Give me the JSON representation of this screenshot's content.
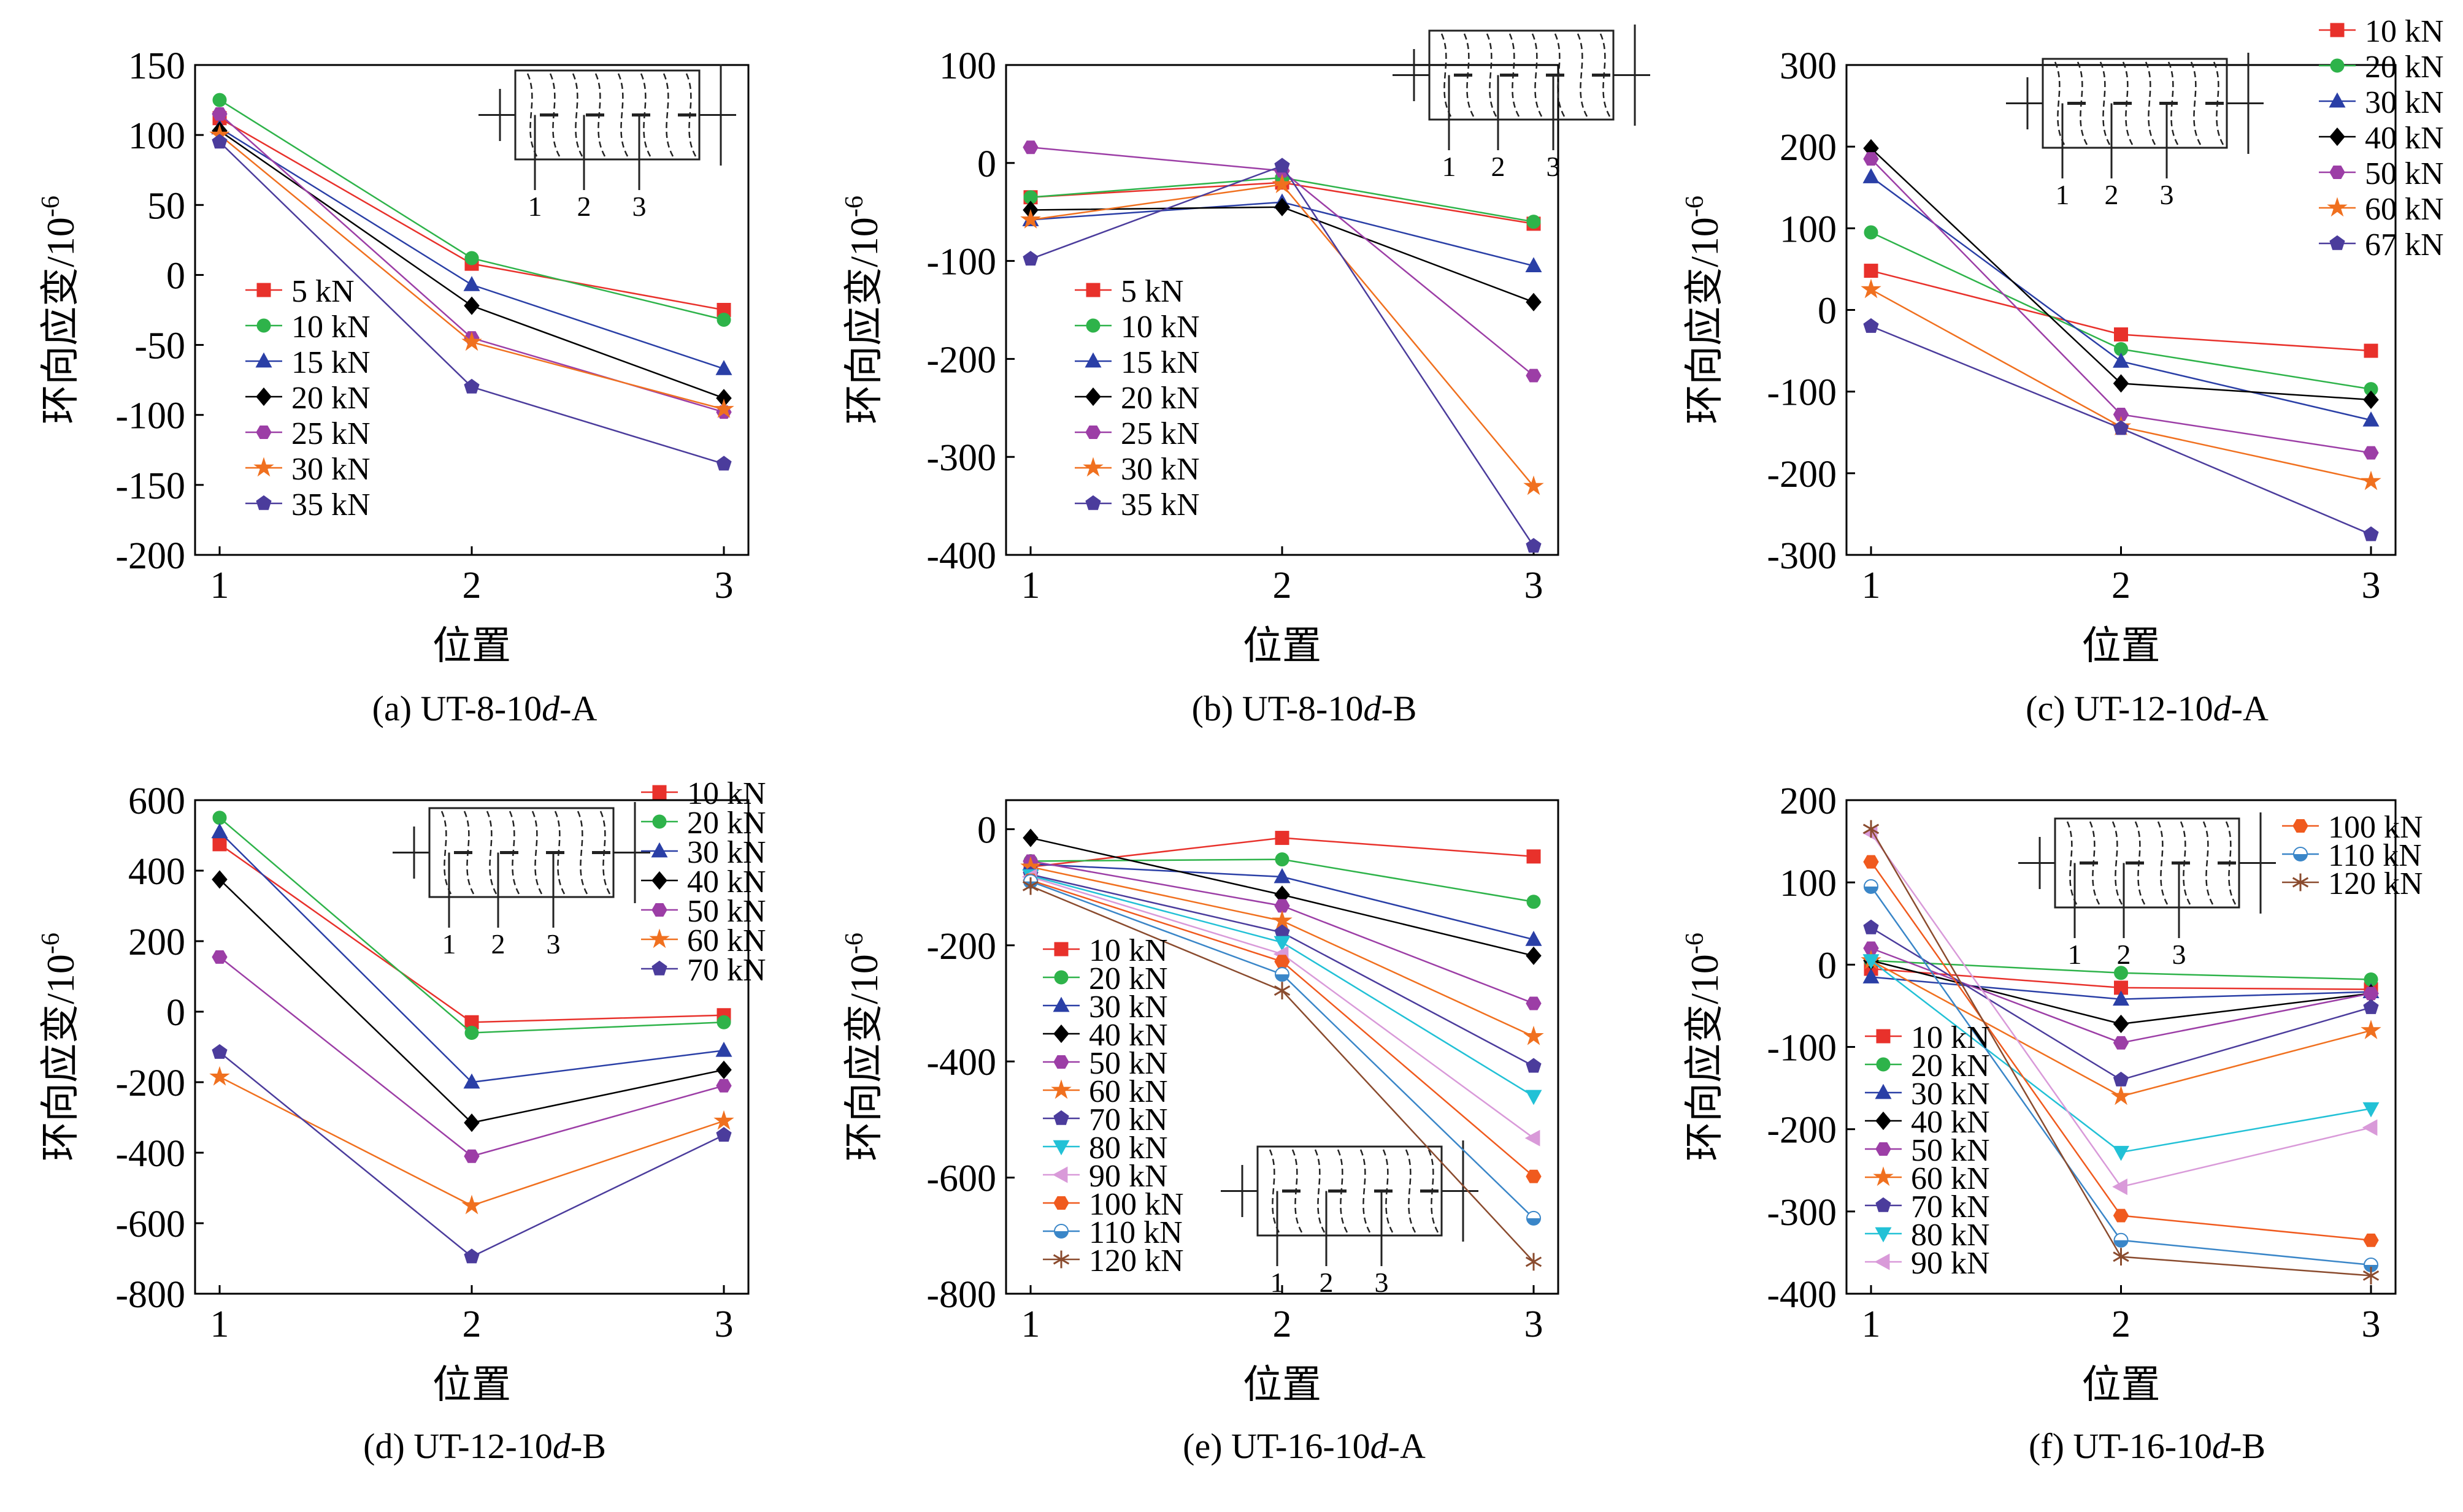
{
  "figure": {
    "ylabel": "环向应变/10",
    "ylabel_sup": "-6",
    "xlabel": "位置"
  },
  "palette": {
    "red": "#e8312b",
    "green": "#2eb34a",
    "blue": "#2a3fa6",
    "black": "#000000",
    "purple": "#9c3ea6",
    "orange": "#f0701f",
    "indigo": "#4b3c9c",
    "cyan": "#22c1d6",
    "pink": "#d99ad9",
    "orange_red": "#f05a1e",
    "steel_blue": "#3a86c8",
    "brown": "#8a4b2e"
  },
  "chart_data": [
    {
      "type": "line",
      "caption_pre": "(a) UT-8-10",
      "caption_ital": "d",
      "caption_post": "-A",
      "x": [
        1,
        2,
        3
      ],
      "xticks": [
        "1",
        "2",
        "3"
      ],
      "ylim": [
        -200,
        150
      ],
      "yticks": [
        150,
        100,
        50,
        0,
        -50,
        -100,
        -150,
        -200
      ],
      "legend": "left-bottom",
      "inset_labels": [
        "1",
        "2",
        "3"
      ],
      "series": [
        {
          "name": "5 kN",
          "color": "#e8312b",
          "marker": "square",
          "values": [
            112,
            8,
            -25
          ]
        },
        {
          "name": "10 kN",
          "color": "#2eb34a",
          "marker": "circle",
          "values": [
            125,
            12,
            -32
          ]
        },
        {
          "name": "15 kN",
          "color": "#2a3fa6",
          "marker": "triangle",
          "values": [
            105,
            -7,
            -67
          ]
        },
        {
          "name": "20 kN",
          "color": "#000000",
          "marker": "diamond",
          "values": [
            103,
            -22,
            -88
          ]
        },
        {
          "name": "25 kN",
          "color": "#9c3ea6",
          "marker": "hexagon",
          "values": [
            115,
            -45,
            -98
          ]
        },
        {
          "name": "30 kN",
          "color": "#f0701f",
          "marker": "star",
          "values": [
            100,
            -48,
            -96
          ]
        },
        {
          "name": "35 kN",
          "color": "#4b3c9c",
          "marker": "pentagon",
          "values": [
            95,
            -80,
            -135
          ]
        }
      ]
    },
    {
      "type": "line",
      "caption_pre": "(b) UT-8-10",
      "caption_ital": "d",
      "caption_post": "-B",
      "x": [
        1,
        2,
        3
      ],
      "xticks": [
        "1",
        "2",
        "3"
      ],
      "ylim": [
        -400,
        100
      ],
      "yticks": [
        100,
        0,
        -100,
        -200,
        -300,
        -400
      ],
      "legend": "left-bottom",
      "inset_labels": [
        "1",
        "2",
        "3"
      ],
      "series": [
        {
          "name": "5 kN",
          "color": "#e8312b",
          "marker": "square",
          "values": [
            -35,
            -20,
            -62
          ]
        },
        {
          "name": "10 kN",
          "color": "#2eb34a",
          "marker": "circle",
          "values": [
            -35,
            -15,
            -60
          ]
        },
        {
          "name": "15 kN",
          "color": "#2a3fa6",
          "marker": "triangle",
          "values": [
            -58,
            -40,
            -105
          ]
        },
        {
          "name": "20 kN",
          "color": "#000000",
          "marker": "diamond",
          "values": [
            -48,
            -45,
            -142
          ]
        },
        {
          "name": "25 kN",
          "color": "#9c3ea6",
          "marker": "hexagon",
          "values": [
            16,
            -8,
            -217
          ]
        },
        {
          "name": "30 kN",
          "color": "#f0701f",
          "marker": "star",
          "values": [
            -58,
            -22,
            -330
          ]
        },
        {
          "name": "35 kN",
          "color": "#4b3c9c",
          "marker": "pentagon",
          "values": [
            -98,
            -3,
            -391
          ]
        }
      ]
    },
    {
      "type": "line",
      "caption_pre": "(c) UT-12-10",
      "caption_ital": "d",
      "caption_post": "-A",
      "x": [
        1,
        2,
        3
      ],
      "xticks": [
        "1",
        "2",
        "3"
      ],
      "ylim": [
        -300,
        300
      ],
      "yticks": [
        300,
        200,
        100,
        0,
        -100,
        -200,
        -300
      ],
      "legend": "top-right",
      "inset_labels": [
        "1",
        "2",
        "3"
      ],
      "series": [
        {
          "name": "10 kN",
          "color": "#e8312b",
          "marker": "square",
          "values": [
            48,
            -30,
            -50
          ]
        },
        {
          "name": "20 kN",
          "color": "#2eb34a",
          "marker": "circle",
          "values": [
            95,
            -48,
            -97
          ]
        },
        {
          "name": "30 kN",
          "color": "#2a3fa6",
          "marker": "triangle",
          "values": [
            163,
            -63,
            -135
          ]
        },
        {
          "name": "40 kN",
          "color": "#000000",
          "marker": "diamond",
          "values": [
            198,
            -90,
            -110
          ]
        },
        {
          "name": "50 kN",
          "color": "#9c3ea6",
          "marker": "hexagon",
          "values": [
            185,
            -128,
            -175
          ]
        },
        {
          "name": "60 kN",
          "color": "#f0701f",
          "marker": "star",
          "values": [
            25,
            -143,
            -210
          ]
        },
        {
          "name": "67 kN",
          "color": "#4b3c9c",
          "marker": "pentagon",
          "values": [
            -20,
            -145,
            -275
          ]
        }
      ]
    },
    {
      "type": "line",
      "caption_pre": "(d) UT-12-10",
      "caption_ital": "d",
      "caption_post": "-B",
      "x": [
        1,
        2,
        3
      ],
      "xticks": [
        "1",
        "2",
        "3"
      ],
      "ylim": [
        -800,
        600
      ],
      "yticks": [
        600,
        400,
        200,
        0,
        -200,
        -400,
        -600,
        -800
      ],
      "legend": "top-right",
      "inset_labels": [
        "1",
        "2",
        "3"
      ],
      "series": [
        {
          "name": "10 kN",
          "color": "#e8312b",
          "marker": "square",
          "values": [
            475,
            -30,
            -10
          ]
        },
        {
          "name": "20 kN",
          "color": "#2eb34a",
          "marker": "circle",
          "values": [
            550,
            -60,
            -30
          ]
        },
        {
          "name": "30 kN",
          "color": "#2a3fa6",
          "marker": "triangle",
          "values": [
            510,
            -200,
            -110
          ]
        },
        {
          "name": "40 kN",
          "color": "#000000",
          "marker": "diamond",
          "values": [
            375,
            -315,
            -165
          ]
        },
        {
          "name": "50 kN",
          "color": "#9c3ea6",
          "marker": "hexagon",
          "values": [
            155,
            -410,
            -210
          ]
        },
        {
          "name": "60 kN",
          "color": "#f0701f",
          "marker": "star",
          "values": [
            -185,
            -550,
            -310
          ]
        },
        {
          "name": "70 kN",
          "color": "#4b3c9c",
          "marker": "pentagon",
          "values": [
            -115,
            -695,
            -350
          ]
        }
      ]
    },
    {
      "type": "line",
      "caption_pre": "(e) UT-16-10",
      "caption_ital": "d",
      "caption_post": "-A",
      "x": [
        1,
        2,
        3
      ],
      "xticks": [
        "1",
        "2",
        "3"
      ],
      "ylim": [
        -800,
        50
      ],
      "yticks": [
        0,
        -200,
        -400,
        -600,
        -800
      ],
      "legend": "left-bottom",
      "inset_labels": [
        "1",
        "2",
        "3"
      ],
      "series": [
        {
          "name": "10 kN",
          "color": "#e8312b",
          "marker": "square",
          "values": [
            -65,
            -15,
            -47
          ]
        },
        {
          "name": "20 kN",
          "color": "#2eb34a",
          "marker": "circle",
          "values": [
            -55,
            -52,
            -125
          ]
        },
        {
          "name": "30 kN",
          "color": "#2a3fa6",
          "marker": "triangle",
          "values": [
            -60,
            -82,
            -190
          ]
        },
        {
          "name": "40 kN",
          "color": "#000000",
          "marker": "diamond",
          "values": [
            -15,
            -113,
            -218
          ]
        },
        {
          "name": "50 kN",
          "color": "#9c3ea6",
          "marker": "hexagon",
          "values": [
            -55,
            -132,
            -300
          ]
        },
        {
          "name": "60 kN",
          "color": "#f0701f",
          "marker": "star",
          "values": [
            -65,
            -158,
            -357
          ]
        },
        {
          "name": "70 kN",
          "color": "#4b3c9c",
          "marker": "pentagon",
          "values": [
            -78,
            -178,
            -408
          ]
        },
        {
          "name": "80 kN",
          "color": "#22c1d6",
          "marker": "tri_down",
          "values": [
            -80,
            -195,
            -460
          ]
        },
        {
          "name": "90 kN",
          "color": "#d99ad9",
          "marker": "tri_left",
          "values": [
            -82,
            -215,
            -532
          ]
        },
        {
          "name": "100 kN",
          "color": "#f05a1e",
          "marker": "hexagon",
          "values": [
            -88,
            -228,
            -598
          ]
        },
        {
          "name": "110 kN",
          "color": "#3a86c8",
          "marker": "halfball",
          "values": [
            -90,
            -250,
            -670
          ]
        },
        {
          "name": "120 kN",
          "color": "#8a4b2e",
          "marker": "asterisk",
          "values": [
            -98,
            -278,
            -745
          ]
        }
      ]
    },
    {
      "type": "line",
      "caption_pre": "(f) UT-16-10",
      "caption_ital": "d",
      "caption_post": "-B",
      "x": [
        1,
        2,
        3
      ],
      "xticks": [
        "1",
        "2",
        "3"
      ],
      "ylim": [
        -400,
        200
      ],
      "yticks": [
        200,
        100,
        0,
        -100,
        -200,
        -300,
        -400
      ],
      "legend": "split",
      "inset_labels": [
        "1",
        "2",
        "3"
      ],
      "series": [
        {
          "name": "10 kN",
          "color": "#e8312b",
          "marker": "square",
          "values": [
            -5,
            -28,
            -30
          ]
        },
        {
          "name": "20 kN",
          "color": "#2eb34a",
          "marker": "circle",
          "values": [
            5,
            -10,
            -18
          ]
        },
        {
          "name": "30 kN",
          "color": "#2a3fa6",
          "marker": "triangle",
          "values": [
            -15,
            -42,
            -33
          ]
        },
        {
          "name": "40 kN",
          "color": "#000000",
          "marker": "diamond",
          "values": [
            5,
            -72,
            -35
          ]
        },
        {
          "name": "50 kN",
          "color": "#9c3ea6",
          "marker": "hexagon",
          "values": [
            20,
            -95,
            -35
          ]
        },
        {
          "name": "60 kN",
          "color": "#f0701f",
          "marker": "star",
          "values": [
            5,
            -160,
            -80
          ]
        },
        {
          "name": "70 kN",
          "color": "#4b3c9c",
          "marker": "pentagon",
          "values": [
            45,
            -140,
            -52
          ]
        },
        {
          "name": "80 kN",
          "color": "#22c1d6",
          "marker": "tri_down",
          "values": [
            5,
            -228,
            -175
          ]
        },
        {
          "name": "90 kN",
          "color": "#d99ad9",
          "marker": "tri_left",
          "values": [
            160,
            -270,
            -198
          ]
        },
        {
          "name": "100 kN",
          "color": "#f05a1e",
          "marker": "hexagon",
          "values": [
            125,
            -305,
            -335
          ]
        },
        {
          "name": "110 kN",
          "color": "#3a86c8",
          "marker": "halfball",
          "values": [
            95,
            -335,
            -365
          ]
        },
        {
          "name": "120 kN",
          "color": "#8a4b2e",
          "marker": "asterisk",
          "values": [
            165,
            -355,
            -378
          ]
        }
      ]
    }
  ]
}
